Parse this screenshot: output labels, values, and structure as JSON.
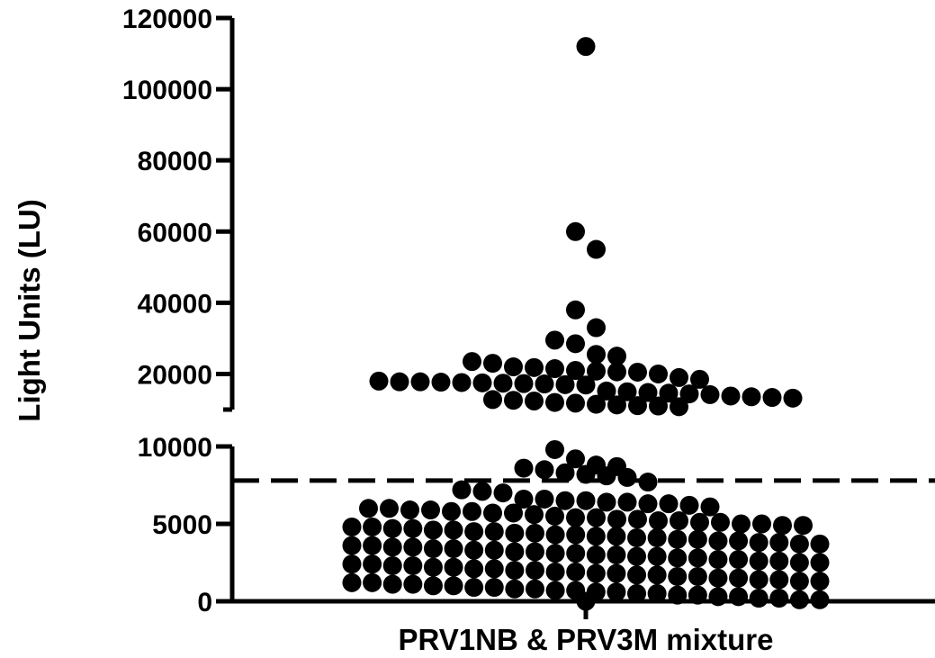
{
  "chart_data": {
    "type": "scatter",
    "title": "",
    "xlabel": "PRV1NB & PRV3M mixture",
    "ylabel": "Light Units (LU)",
    "categories": [
      "PRV1NB & PRV3M mixture"
    ],
    "y_axis_broken": true,
    "y_segments": [
      {
        "range": [
          0,
          10000
        ],
        "ticks": [
          0,
          5000,
          10000
        ]
      },
      {
        "range": [
          10000,
          120000
        ],
        "ticks": [
          20000,
          40000,
          60000,
          80000,
          100000,
          120000
        ]
      }
    ],
    "tick_labels": [
      "0",
      "5000",
      "10000",
      "20000",
      "40000",
      "60000",
      "80000",
      "100000",
      "120000"
    ],
    "threshold_line": 7800,
    "grid": false,
    "legend": "none",
    "point_color": "#000000",
    "series": [
      {
        "category": "PRV1NB & PRV3M mixture",
        "values": [
          112000,
          60000,
          55000,
          38000,
          33000,
          29500,
          28500,
          25500,
          25000,
          23500,
          23000,
          22000,
          21800,
          21500,
          21000,
          20800,
          20600,
          20500,
          20000,
          19000,
          18500,
          18000,
          17800,
          17800,
          17700,
          17600,
          17500,
          17400,
          17300,
          17200,
          17000,
          16900,
          15200,
          15000,
          14800,
          14600,
          14400,
          14200,
          13800,
          13600,
          13400,
          13200,
          12800,
          12600,
          12400,
          12000,
          11800,
          11500,
          11300,
          11100,
          11000,
          10800,
          9800,
          9200,
          8800,
          8700,
          8600,
          8500,
          8300,
          8200,
          8100,
          8000,
          7700,
          7200,
          7100,
          7000,
          6600,
          6600,
          6500,
          6500,
          6400,
          6400,
          6300,
          6300,
          6200,
          6100,
          6000,
          6000,
          5900,
          5900,
          5800,
          5800,
          5700,
          5700,
          5600,
          5500,
          5400,
          5400,
          5300,
          5300,
          5200,
          5200,
          5100,
          5100,
          5000,
          5000,
          4900,
          4900,
          4800,
          4800,
          4700,
          4700,
          4600,
          4600,
          4500,
          4500,
          4400,
          4400,
          4300,
          4300,
          4200,
          4200,
          4100,
          4100,
          4000,
          4000,
          3900,
          3900,
          3800,
          3800,
          3700,
          3700,
          3600,
          3600,
          3500,
          3500,
          3400,
          3400,
          3300,
          3300,
          3200,
          3200,
          3100,
          3100,
          3000,
          3000,
          2900,
          2900,
          2800,
          2800,
          2700,
          2700,
          2600,
          2600,
          2500,
          2500,
          2400,
          2400,
          2300,
          2300,
          2200,
          2200,
          2100,
          2100,
          2000,
          2000,
          1900,
          1900,
          1800,
          1800,
          1700,
          1700,
          1600,
          1600,
          1500,
          1500,
          1400,
          1400,
          1300,
          1300,
          1200,
          1200,
          1100,
          1100,
          1000,
          1000,
          900,
          900,
          800,
          800,
          700,
          700,
          600,
          600,
          500,
          500,
          400,
          400,
          300,
          300,
          200,
          200,
          100,
          100,
          0
        ]
      }
    ]
  }
}
